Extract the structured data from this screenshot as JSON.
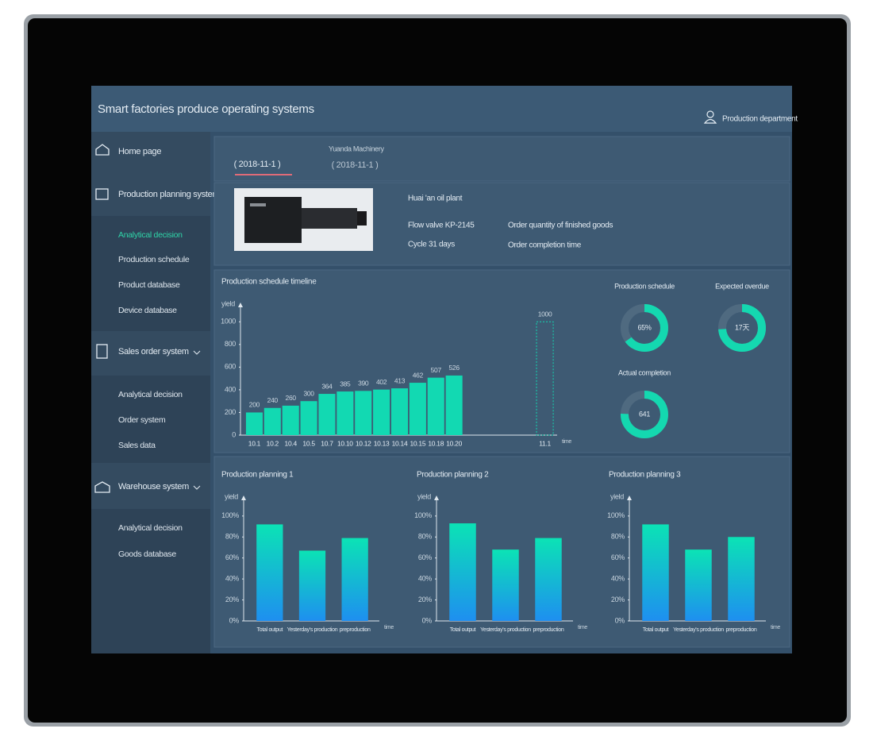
{
  "header": {
    "title": "Smart factories produce operating systems",
    "user": "Production department"
  },
  "sidebar": {
    "menus": [
      {
        "label": "Home page"
      },
      {
        "label": "Production planning system",
        "items": [
          "Analytical decision",
          "Production schedule",
          "Product database",
          "Device database"
        ]
      },
      {
        "label": "Sales order system",
        "items": [
          "Analytical decision",
          "Order system",
          "Sales data"
        ]
      },
      {
        "label": "Warehouse system",
        "items": [
          "Analytical decision",
          "Goods database"
        ]
      }
    ]
  },
  "tabs": [
    {
      "date": "( 2018-11-1 )"
    },
    {
      "company": "Yuanda Machinery",
      "date": "( 2018-11-1 )"
    }
  ],
  "product": {
    "plant": "Huai 'an oil plant",
    "model": "Flow valve KP-2145",
    "cycle": "Cycle 31 days",
    "quantity_field": "Order quantity of finished goods",
    "completion_field": "Order completion time"
  },
  "chart_data": [
    {
      "type": "bar",
      "title": "Production schedule timeline",
      "y_label": "yield",
      "x_label": "time",
      "categories": [
        "10.1",
        "10.2",
        "10.4",
        "10.5",
        "10.7",
        "10.10",
        "10.12",
        "10.13",
        "10.14",
        "10.15",
        "10.18",
        "10.20",
        null,
        null,
        null,
        null,
        "11.1"
      ],
      "values": [
        200,
        240,
        260,
        300,
        364,
        385,
        390,
        402,
        413,
        462,
        507,
        526,
        null,
        null,
        null,
        null,
        1000
      ],
      "bar_style": [
        "fill",
        "fill",
        "fill",
        "fill",
        "fill",
        "fill",
        "fill",
        "fill",
        "fill",
        "fill",
        "fill",
        "fill",
        null,
        null,
        null,
        null,
        "outline"
      ],
      "color": "#12d9b2",
      "ylim": [
        0,
        1100
      ],
      "yticks": [
        0,
        200,
        400,
        600,
        800,
        1000
      ],
      "grid": false
    },
    {
      "type": "donut",
      "title": "Production schedule",
      "values": [
        65
      ],
      "value_labels": [
        "65%"
      ],
      "ylim": [
        0,
        100
      ],
      "color": "#14d8b0"
    },
    {
      "type": "donut",
      "title": "Expected overdue",
      "values": [
        17
      ],
      "value_labels": [
        "17天"
      ],
      "ylim": [
        0,
        23
      ],
      "color": "#14d8b0"
    },
    {
      "type": "donut",
      "title": "Actual completion",
      "values": [
        641
      ],
      "value_labels": [
        "641"
      ],
      "ylim": [
        0,
        850
      ],
      "color": "#14d8b0"
    },
    {
      "type": "bar",
      "title": "Production planning 1",
      "y_label": "yield",
      "x_label": "time",
      "categories": [
        "Total output",
        "Yesterday's production",
        "preproduction"
      ],
      "values": [
        92,
        67,
        79
      ],
      "color": [
        "#0be3b5",
        "#1e8ff0"
      ],
      "ylim": [
        0,
        112
      ],
      "yticks": [
        {
          "value": 0,
          "label": "0%"
        },
        {
          "value": 20,
          "label": "20%"
        },
        {
          "value": 40,
          "label": "40%"
        },
        {
          "value": 60,
          "label": "60%"
        },
        {
          "value": 80,
          "label": "80%"
        },
        {
          "value": 100,
          "label": "100%"
        }
      ],
      "grid": false
    },
    {
      "type": "bar",
      "title": "Production planning 2",
      "y_label": "yield",
      "x_label": "time",
      "categories": [
        "Total output",
        "Yesterday's production",
        "preproduction"
      ],
      "values": [
        93,
        68,
        79
      ],
      "color": [
        "#0be3b5",
        "#1e8ff0"
      ],
      "ylim": [
        0,
        112
      ],
      "yticks": [
        {
          "value": 0,
          "label": "0%"
        },
        {
          "value": 20,
          "label": "20%"
        },
        {
          "value": 40,
          "label": "40%"
        },
        {
          "value": 60,
          "label": "60%"
        },
        {
          "value": 80,
          "label": "80%"
        },
        {
          "value": 100,
          "label": "100%"
        }
      ],
      "grid": false
    },
    {
      "type": "bar",
      "title": "Production planning 3",
      "y_label": "yield",
      "x_label": "time",
      "categories": [
        "Total output",
        "Yesterday's production",
        "preproduction"
      ],
      "values": [
        92,
        68,
        80
      ],
      "color": [
        "#0be3b5",
        "#1e8ff0"
      ],
      "ylim": [
        0,
        112
      ],
      "yticks": [
        {
          "value": 0,
          "label": "0%"
        },
        {
          "value": 20,
          "label": "20%"
        },
        {
          "value": 40,
          "label": "40%"
        },
        {
          "value": 60,
          "label": "60%"
        },
        {
          "value": 80,
          "label": "80%"
        },
        {
          "value": 100,
          "label": "100%"
        }
      ],
      "grid": false
    }
  ]
}
